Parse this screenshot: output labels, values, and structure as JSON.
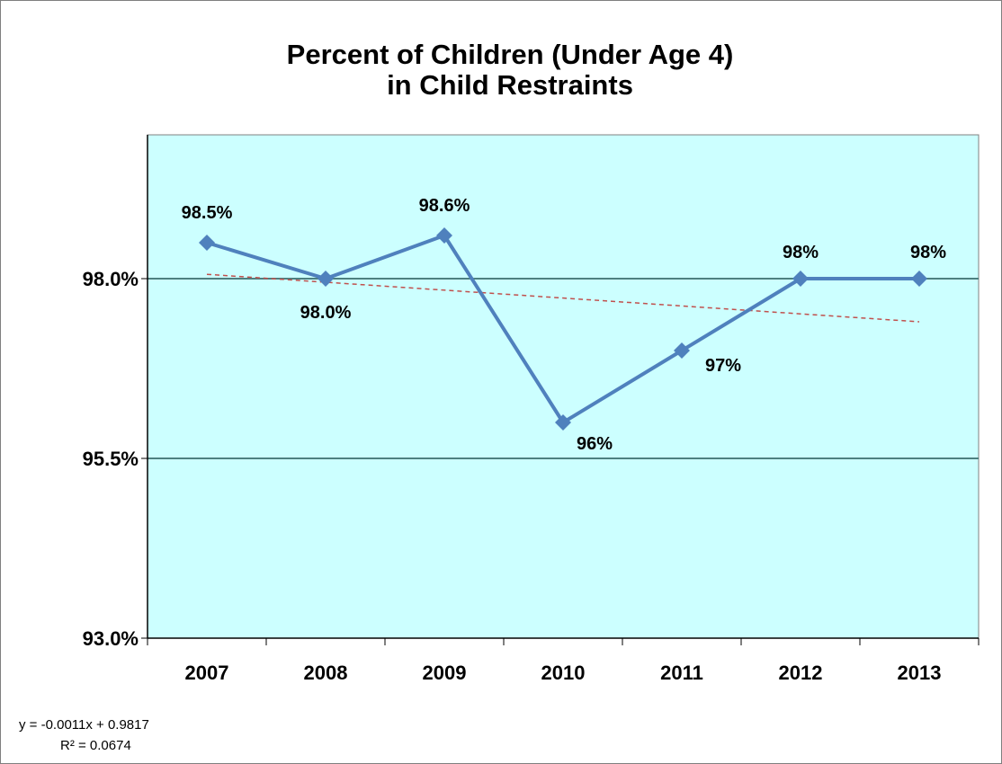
{
  "chart_data": {
    "type": "line",
    "title_lines": [
      "Percent of Children (Under Age 4)",
      "in Child Restraints"
    ],
    "xlabel": "",
    "ylabel": "",
    "categories": [
      "2007",
      "2008",
      "2009",
      "2010",
      "2011",
      "2012",
      "2013"
    ],
    "series": [
      {
        "values": [
          98.5,
          98.0,
          98.6,
          96.0,
          97.0,
          98.0,
          98.0
        ],
        "data_labels": [
          "98.5%",
          "98.0%",
          "98.6%",
          "96%",
          "97%",
          "98%",
          "98%"
        ],
        "color": "#4f81bd",
        "marker": "diamond"
      }
    ],
    "trendline": {
      "type": "linear",
      "equation": "y = -0.0011x + 0.9817",
      "r_squared": "R² = 0.0674",
      "start_value": 98.06,
      "end_value": 97.4,
      "color": "#c0504d",
      "style": "dashed"
    },
    "ylim": [
      93.0,
      100.0
    ],
    "yticks": [
      93.0,
      95.5,
      98.0
    ],
    "ytick_labels": [
      "93.0%",
      "95.5%",
      "98.0%"
    ],
    "grid": true,
    "plot_background": "#ccffff",
    "gridline_color": "#4d8080",
    "legend": "none"
  }
}
